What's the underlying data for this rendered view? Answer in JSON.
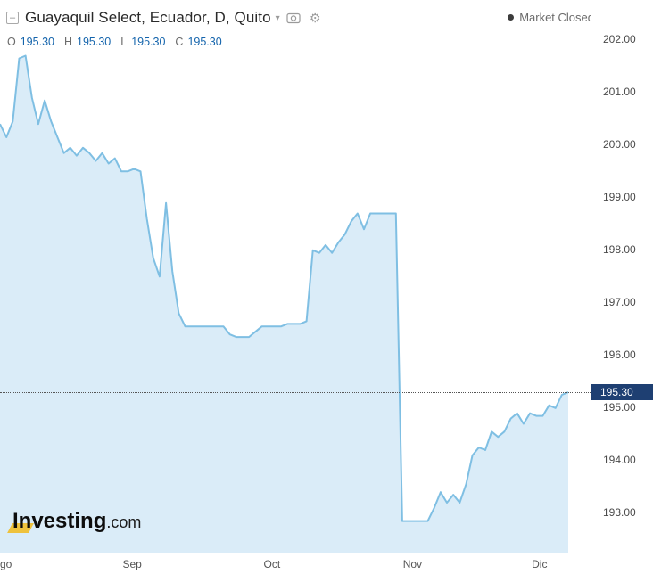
{
  "header": {
    "title": "Guayaquil Select, Ecuador, D, Quito",
    "caret": "▾",
    "collapse_glyph": "–",
    "market_status": "Market Closed"
  },
  "ohlc": {
    "o_label": "O",
    "o_value": "195.30",
    "h_label": "H",
    "h_value": "195.30",
    "l_label": "L",
    "l_value": "195.30",
    "c_label": "C",
    "c_value": "195.30"
  },
  "watermark": {
    "bold": "Investing",
    "suffix": ".com"
  },
  "colors": {
    "line": "#7fbfe3",
    "area_fill": "#daecf8",
    "price_tag_bg": "#1e3f72",
    "price_tag_text": "#ffffff",
    "ohlc_value_blue": "#1464ac",
    "axis_text": "#4a4a4a",
    "logo_accent_yellow": "#eec23d"
  },
  "chart_data": {
    "type": "area",
    "title": "Guayaquil Select, Ecuador, D, Quito",
    "timeframe": "D",
    "grid": false,
    "legend": "none",
    "ylim": [
      192.25,
      202.76
    ],
    "y_ticks": [
      "202.00",
      "201.00",
      "200.00",
      "199.00",
      "198.00",
      "197.00",
      "196.00",
      "195.00",
      "194.00",
      "193.00"
    ],
    "x_ticks": [
      {
        "label": "go",
        "day": 0
      },
      {
        "label": "Sep",
        "day": 20.7
      },
      {
        "label": "Oct",
        "day": 42.6
      },
      {
        "label": "Nov",
        "day": 64.6
      },
      {
        "label": "Dic",
        "day": 84.5
      }
    ],
    "current_price": 195.3,
    "current_price_label": "195.30",
    "series": [
      {
        "name": "Guayaquil Select",
        "values": [
          200.4,
          200.15,
          200.45,
          201.65,
          201.7,
          200.9,
          200.4,
          200.85,
          200.45,
          200.15,
          199.85,
          199.95,
          199.8,
          199.95,
          199.85,
          199.7,
          199.85,
          199.65,
          199.75,
          199.5,
          199.5,
          199.55,
          199.5,
          198.6,
          197.85,
          197.5,
          198.9,
          197.6,
          196.8,
          196.55,
          196.55,
          196.55,
          196.55,
          196.55,
          196.55,
          196.55,
          196.4,
          196.35,
          196.35,
          196.35,
          196.45,
          196.55,
          196.55,
          196.55,
          196.55,
          196.6,
          196.6,
          196.6,
          196.65,
          198.0,
          197.95,
          198.1,
          197.95,
          198.15,
          198.3,
          198.55,
          198.7,
          198.4,
          198.7,
          198.7,
          198.7,
          198.7,
          198.7,
          192.85,
          192.85,
          192.85,
          192.85,
          192.85,
          193.1,
          193.4,
          193.2,
          193.35,
          193.2,
          193.55,
          194.1,
          194.25,
          194.2,
          194.55,
          194.45,
          194.55,
          194.8,
          194.9,
          194.7,
          194.9,
          194.85,
          194.85,
          195.05,
          195.0,
          195.25,
          195.3
        ]
      }
    ]
  }
}
